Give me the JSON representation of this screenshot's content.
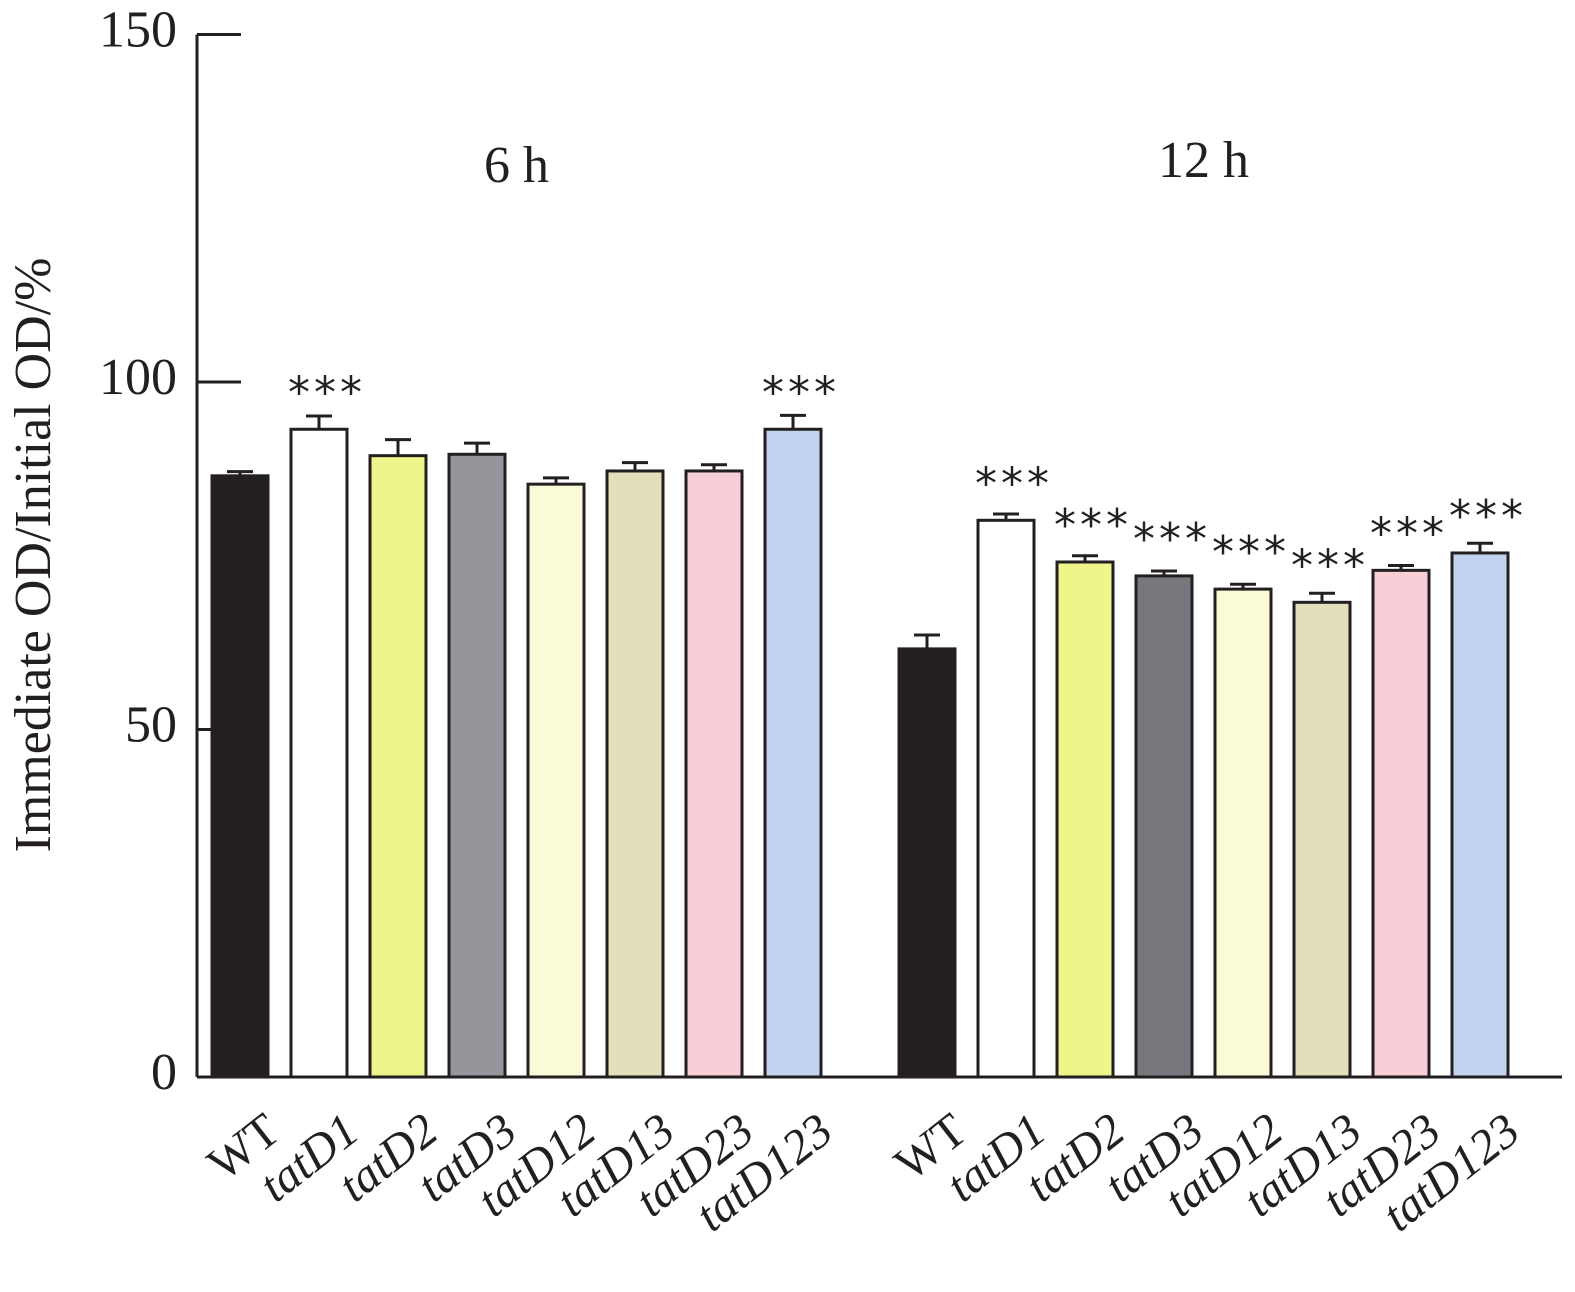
{
  "chart_data": {
    "type": "bar",
    "y_label": "Immediate OD/Initial OD/%",
    "ylim": [
      0,
      150
    ],
    "yticks": [
      0,
      50,
      100,
      150
    ],
    "groups": [
      {
        "label": "6 h",
        "categories": [
          "WT",
          "tatD1",
          "tatD2",
          "tatD3",
          "tatD12",
          "tatD13",
          "tatD23",
          "tatD123"
        ],
        "values": [
          86.5,
          93.2,
          89.4,
          89.6,
          85.3,
          87.2,
          87.2,
          93.2
        ],
        "errors": [
          0.6,
          1.9,
          2.3,
          1.6,
          0.9,
          1.2,
          0.9,
          2.0
        ],
        "colors": [
          "#231f20",
          "#ffffff",
          "#eef58a",
          "#94969c",
          "#fafad6",
          "#e2dfba",
          "#f9cfd7",
          "#c0d4ef"
        ],
        "significance": [
          null,
          "***",
          null,
          null,
          null,
          null,
          null,
          "***"
        ]
      },
      {
        "label": "12 h",
        "categories": [
          "WT",
          "tatD1",
          "tatD2",
          "tatD3",
          "tatD12",
          "tatD13",
          "tatD23",
          "tatD123"
        ],
        "values": [
          61.6,
          80.1,
          74.1,
          72.1,
          70.2,
          68.3,
          72.9,
          75.4
        ],
        "errors": [
          2.0,
          0.9,
          0.9,
          0.7,
          0.7,
          1.3,
          0.7,
          1.4
        ],
        "colors": [
          "#231f20",
          "#ffffff",
          "#eef58a",
          "#76787e",
          "#fafad6",
          "#e2dfba",
          "#f9cfd7",
          "#c0d4ef"
        ],
        "significance": [
          null,
          "***",
          "***",
          "***",
          "***",
          "***",
          "***",
          "***"
        ]
      }
    ]
  }
}
